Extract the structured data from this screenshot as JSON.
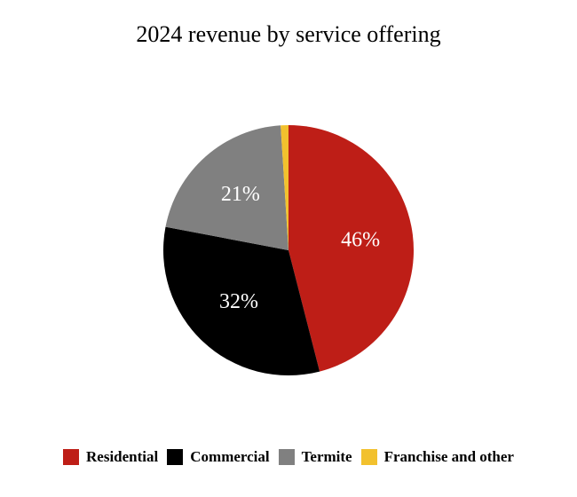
{
  "chart_data": {
    "type": "pie",
    "title": "2024 revenue by service offering",
    "slices": [
      {
        "name": "Residential",
        "value": 46,
        "label": "46%",
        "color": "#be1e17"
      },
      {
        "name": "Commercial",
        "value": 32,
        "label": "32%",
        "color": "#000000"
      },
      {
        "name": "Termite",
        "value": 21,
        "label": "21%",
        "color": "#808080"
      },
      {
        "name": "Franchise and other",
        "value": 1,
        "label": "",
        "color": "#f2c12e"
      }
    ],
    "legend_position": "bottom"
  }
}
